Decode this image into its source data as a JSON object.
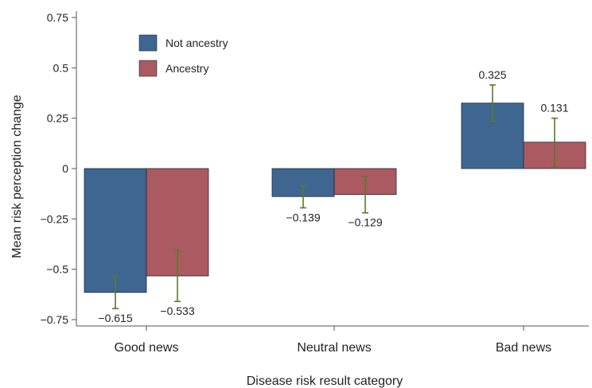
{
  "chart_data": {
    "type": "bar",
    "title": "",
    "xlabel": "Disease risk result category",
    "ylabel": "Mean risk perception change",
    "categories": [
      "Good news",
      "Neutral news",
      "Bad news"
    ],
    "ylim": [
      -0.75,
      0.75
    ],
    "yticks": [
      {
        "value": 0.75,
        "label": "0.75"
      },
      {
        "value": 0.5,
        "label": "0.5"
      },
      {
        "value": 0.25,
        "label": "0.25"
      },
      {
        "value": 0,
        "label": "0"
      },
      {
        "value": -0.25,
        "label": "−0.25"
      },
      {
        "value": -0.5,
        "label": "−0.5"
      },
      {
        "value": -0.75,
        "label": "−0.75"
      }
    ],
    "series": [
      {
        "name": "Not ancestry",
        "color": "#3f6690",
        "values": [
          -0.615,
          -0.139,
          0.325
        ],
        "labels": [
          "−0.615",
          "−0.139",
          "0.325"
        ],
        "error_low": [
          -0.695,
          -0.195,
          0.235
        ],
        "error_high": [
          -0.535,
          -0.085,
          0.415
        ]
      },
      {
        "name": "Ancestry",
        "color": "#aa5a60",
        "values": [
          -0.533,
          -0.129,
          0.131
        ],
        "labels": [
          "−0.533",
          "−0.129",
          "0.131"
        ],
        "error_low": [
          -0.66,
          -0.22,
          0.01
        ],
        "error_high": [
          -0.405,
          -0.04,
          0.25
        ]
      }
    ],
    "error_bar_color": "#5a7a2a",
    "legend_position": "top-left",
    "grid": false
  }
}
